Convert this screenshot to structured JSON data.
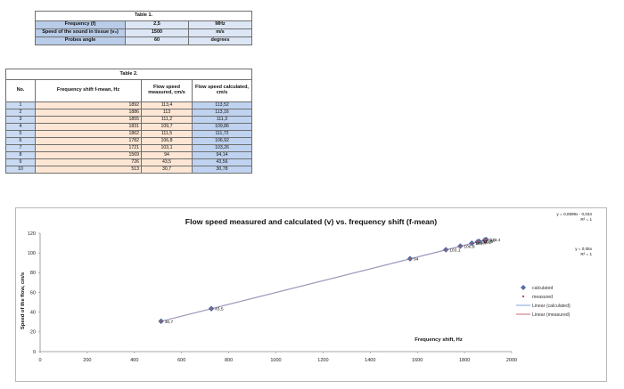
{
  "table1": {
    "title": "Table 1.",
    "rows": [
      {
        "parameter": "Frequency (f)",
        "value": "2,5",
        "unit": "MHz"
      },
      {
        "parameter": "Speed of the sound in tissue (v₀)",
        "value": "1500",
        "unit": "m/s"
      },
      {
        "parameter": "Probes angle",
        "value": "60",
        "unit": "degrees"
      }
    ]
  },
  "table2": {
    "title": "Table 2.",
    "headers": {
      "no": "No.",
      "frequency": "Frequency shift f-mean, Hz",
      "measured": "Flow speed measured, cm/s",
      "calculated": "Flow speed calculated, cm/s"
    },
    "rows": [
      {
        "no": "1",
        "frequency": "1892",
        "measured": "113,4",
        "calculated": "113,52"
      },
      {
        "no": "2",
        "frequency": "1886",
        "measured": "113",
        "calculated": "113,16"
      },
      {
        "no": "3",
        "frequency": "1855",
        "measured": "111,2",
        "calculated": "111,3"
      },
      {
        "no": "4",
        "frequency": "1831",
        "measured": "109,7",
        "calculated": "109,86"
      },
      {
        "no": "5",
        "frequency": "1862",
        "measured": "111,5",
        "calculated": "111,72"
      },
      {
        "no": "6",
        "frequency": "1782",
        "measured": "106,8",
        "calculated": "106,92"
      },
      {
        "no": "7",
        "frequency": "1721",
        "measured": "103,1",
        "calculated": "103,26"
      },
      {
        "no": "8",
        "frequency": "1569",
        "measured": "94",
        "calculated": "94,14"
      },
      {
        "no": "9",
        "frequency": "726",
        "measured": "43,5",
        "calculated": "43,56"
      },
      {
        "no": "10",
        "frequency": "513",
        "measured": "30,7",
        "calculated": "30,78"
      }
    ]
  },
  "chart_data": {
    "type": "scatter",
    "title": "Flow speed measured and calculated (v) vs. frequency shift (f-mean)",
    "xlabel": "Frequency shift, Hz",
    "ylabel": "Speed of the flow, cm/s",
    "xlim": [
      0,
      2000
    ],
    "ylim": [
      0,
      120
    ],
    "x_ticks": [
      "0",
      "200",
      "400",
      "600",
      "800",
      "1000",
      "1200",
      "1400",
      "1600",
      "1800",
      "2000"
    ],
    "y_ticks": [
      "0",
      "20",
      "40",
      "60",
      "80",
      "100",
      "120"
    ],
    "grid": false,
    "legend_position": "right",
    "series": [
      {
        "name": "calculated",
        "marker": "diamond",
        "color": "#4f6fa8",
        "x": [
          1892,
          1886,
          1855,
          1831,
          1862,
          1782,
          1721,
          1569,
          726,
          513
        ],
        "y": [
          113.52,
          113.16,
          111.3,
          109.86,
          111.72,
          106.92,
          103.26,
          94.14,
          43.56,
          30.78
        ]
      },
      {
        "name": "measured",
        "marker": "point",
        "color": "#c0504d",
        "x": [
          1892,
          1886,
          1855,
          1831,
          1862,
          1782,
          1721,
          1569,
          726,
          513
        ],
        "y": [
          113.4,
          113,
          111.2,
          109.7,
          111.5,
          106.8,
          103.1,
          94,
          43.5,
          30.7
        ]
      }
    ],
    "data_labels": [
      {
        "x": 1892,
        "y": 113.4,
        "text": "113,4"
      },
      {
        "x": 1886,
        "y": 113,
        "text": "113"
      },
      {
        "x": 1855,
        "y": 111.2,
        "text": "111,2"
      },
      {
        "x": 1831,
        "y": 109.7,
        "text": "109,7"
      },
      {
        "x": 1862,
        "y": 111.5,
        "text": "111,5"
      },
      {
        "x": 1782,
        "y": 106.8,
        "text": "106,8"
      },
      {
        "x": 1721,
        "y": 103.1,
        "text": "103,1"
      },
      {
        "x": 1569,
        "y": 94,
        "text": "94"
      },
      {
        "x": 726,
        "y": 43.5,
        "text": "43,5"
      },
      {
        "x": 513,
        "y": 30.7,
        "text": "30,7"
      }
    ],
    "legend": [
      {
        "name": "calculated",
        "style": "diamond",
        "color": "#4f6fa8"
      },
      {
        "name": "measured",
        "style": "point",
        "color": "#c0504d"
      },
      {
        "name": "Linear (calculated)",
        "style": "line",
        "color": "#7ea6d8"
      },
      {
        "name": "Linear (measured)",
        "style": "line",
        "color": "#c56b78"
      }
    ],
    "trendlines": [
      {
        "series": "measured",
        "equation": "y = 0,0599x - 0,034",
        "r2": "R² = 1",
        "color": "#c0504d",
        "slope": 0.0599,
        "intercept": -0.034
      },
      {
        "series": "calculated",
        "equation": "y = 0,06x",
        "r2": "R² = 1",
        "color": "#5d8fd0",
        "slope": 0.06,
        "intercept": 0
      }
    ]
  }
}
